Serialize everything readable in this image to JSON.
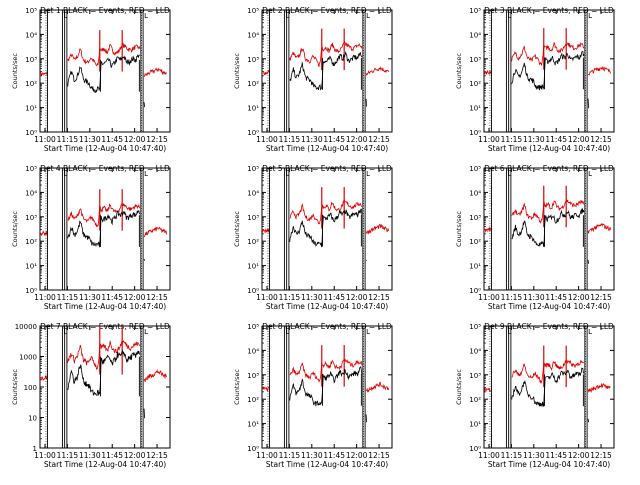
{
  "colors": {
    "events": "#000000",
    "lld": "#e00000",
    "axis": "#000000"
  },
  "common": {
    "xlabel": "Start Time (12-Aug-04 10:47:40)",
    "ylabel": "Counts/sec",
    "xticks": [
      "11:00",
      "11:15",
      "11:30",
      "11:45",
      "12:00",
      "12:15"
    ],
    "xrange_minutes": [
      9,
      96
    ],
    "xtick_minutes": [
      12.33,
      27.33,
      42.33,
      57.33,
      72.33,
      87.33
    ],
    "vlines_minutes": [
      14.0,
      24.0,
      25.5,
      27.0,
      76.5,
      78.0
    ],
    "legend_marker": "L",
    "scale": "log",
    "legend_text": "BLACK = Events, RED = LLD"
  },
  "chart_data": [
    {
      "type": "line",
      "title": "Det 1",
      "ylim": [
        1,
        100000
      ],
      "yticks": [
        "10⁰",
        "10¹",
        "10²",
        "10³",
        "10⁴",
        "10⁵"
      ],
      "ytick_values": [
        1,
        10,
        100,
        1000,
        10000,
        100000
      ],
      "lld_scale": 1.0,
      "events_scale": 1.0
    },
    {
      "type": "line",
      "title": "Det 2",
      "ylim": [
        1,
        100000
      ],
      "yticks": [
        "10⁰",
        "10¹",
        "10²",
        "10³",
        "10⁴",
        "10⁵"
      ],
      "ytick_values": [
        1,
        10,
        100,
        1000,
        10000,
        100000
      ],
      "lld_scale": 1.15,
      "events_scale": 1.2
    },
    {
      "type": "line",
      "title": "Det 3",
      "ylim": [
        1,
        100000
      ],
      "yticks": [
        "10⁰",
        "10¹",
        "10²",
        "10³",
        "10⁴",
        "10⁵"
      ],
      "ytick_values": [
        1,
        10,
        100,
        1000,
        10000,
        100000
      ],
      "lld_scale": 1.2,
      "events_scale": 1.25
    },
    {
      "type": "line",
      "title": "Det 4",
      "ylim": [
        1,
        100000
      ],
      "yticks": [
        "10⁰",
        "10¹",
        "10²",
        "10³",
        "10⁴",
        "10⁵"
      ],
      "ytick_values": [
        1,
        10,
        100,
        1000,
        10000,
        100000
      ],
      "lld_scale": 0.9,
      "events_scale": 1.3
    },
    {
      "type": "line",
      "title": "Det 5",
      "ylim": [
        1,
        100000
      ],
      "yticks": [
        "10⁰",
        "10¹",
        "10²",
        "10³",
        "10⁴",
        "10⁵"
      ],
      "ytick_values": [
        1,
        10,
        100,
        1000,
        10000,
        100000
      ],
      "lld_scale": 1.1,
      "events_scale": 1.35
    },
    {
      "type": "line",
      "title": "Det 6",
      "ylim": [
        1,
        100000
      ],
      "yticks": [
        "10⁰",
        "10¹",
        "10²",
        "10³",
        "10⁴",
        "10⁵"
      ],
      "ytick_values": [
        1,
        10,
        100,
        1000,
        10000,
        100000
      ],
      "lld_scale": 1.25,
      "events_scale": 1.3
    },
    {
      "type": "line",
      "title": "Det 7",
      "ylim": [
        1,
        10000
      ],
      "yticks": [
        "1",
        "10",
        "100",
        "1000",
        "10000"
      ],
      "ytick_values": [
        1,
        10,
        100,
        1000,
        10000
      ],
      "lld_scale": 0.85,
      "events_scale": 1.1
    },
    {
      "type": "line",
      "title": "Det 8",
      "ylim": [
        1,
        100000
      ],
      "yticks": [
        "10⁰",
        "10¹",
        "10²",
        "10³",
        "10⁴",
        "10⁵"
      ],
      "ytick_values": [
        1,
        10,
        100,
        1000,
        10000,
        100000
      ],
      "lld_scale": 1.1,
      "events_scale": 1.2
    },
    {
      "type": "line",
      "title": "Det 9",
      "ylim": [
        1,
        100000
      ],
      "yticks": [
        "10⁰",
        "10¹",
        "10²",
        "10³",
        "10⁴",
        "10⁵"
      ],
      "ytick_values": [
        1,
        10,
        100,
        1000,
        10000,
        100000
      ],
      "lld_scale": 1.05,
      "events_scale": 1.15
    }
  ]
}
